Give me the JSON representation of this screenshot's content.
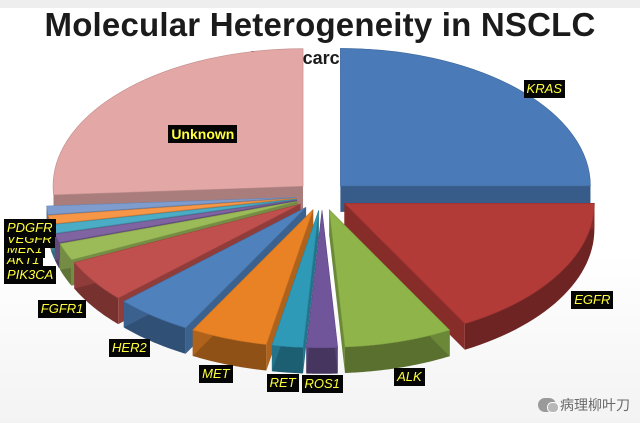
{
  "header": {
    "title": "Molecular Heterogeneity in NSCLC",
    "subtitle": "- Adenocarcinoma -"
  },
  "chart_data": {
    "type": "pie",
    "title": "Molecular Heterogeneity in NSCLC",
    "subtitle": "- Adenocarcinoma -",
    "slices": [
      {
        "label": "KRAS",
        "value": 25,
        "color": "#4a7ab8"
      },
      {
        "label": "EGFR",
        "value": 17,
        "color": "#b23a37"
      },
      {
        "label": "ALK",
        "value": 7,
        "color": "#8fb54a"
      },
      {
        "label": "ROS1",
        "value": 2,
        "color": "#70559a"
      },
      {
        "label": "RET",
        "value": 2,
        "color": "#2f9ab8"
      },
      {
        "label": "MET",
        "value": 5,
        "color": "#e98224"
      },
      {
        "label": "HER2",
        "value": 5,
        "color": "#4f81bd"
      },
      {
        "label": "FGFR1",
        "value": 5,
        "color": "#c0504d"
      },
      {
        "label": "PIK3CA",
        "value": 2,
        "color": "#9bbb59"
      },
      {
        "label": "AKT1",
        "value": 1,
        "color": "#8064a2"
      },
      {
        "label": "MEK1",
        "value": 1,
        "color": "#4bacc6"
      },
      {
        "label": "VEGFR",
        "value": 1,
        "color": "#f79646"
      },
      {
        "label": "PDGFR",
        "value": 1,
        "color": "#7f9ccf"
      },
      {
        "label": "Unknown",
        "value": 26,
        "color": "#e3a7a6"
      }
    ]
  },
  "watermark": {
    "text": "病理柳叶刀"
  }
}
